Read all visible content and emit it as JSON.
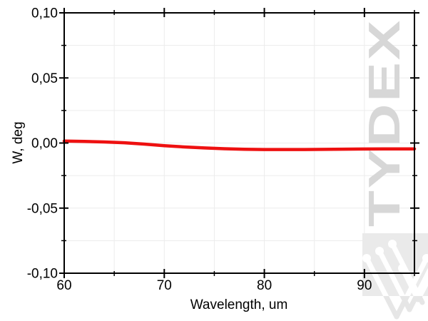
{
  "figure": {
    "background": "#ffffff",
    "watermark": {
      "text": "TYDEX",
      "text_color": "#d7d7d7",
      "panel_color": "#eaeaea",
      "logo_color_on_panel": "#ffffff",
      "logo_color_below_panel": "#e6e6e6"
    }
  },
  "chart_data": {
    "type": "line",
    "title": "",
    "xlabel": "Wavelength, um",
    "ylabel": "W, deg",
    "xlim": [
      60,
      95
    ],
    "ylim": [
      -0.1,
      0.1
    ],
    "x_major_ticks": [
      60,
      70,
      80,
      90
    ],
    "x_tick_labels": [
      "60",
      "70",
      "80",
      "90"
    ],
    "x_minor_ticks": [
      65,
      75,
      85,
      95
    ],
    "y_major_ticks": [
      0.1,
      0.05,
      0.0,
      -0.05,
      -0.1
    ],
    "y_tick_labels": [
      "0,10",
      "0,05",
      "0,00",
      "-0,05",
      "-0,10"
    ],
    "y_minor_ticks": [
      0.075,
      0.025,
      -0.025,
      -0.075
    ],
    "grid": true,
    "grid_color": "#ececec",
    "axis_color": "#000000",
    "legend": null,
    "series": [
      {
        "name": "W",
        "color": "#ee1010",
        "width": 4.5,
        "x": [
          60,
          62,
          64,
          66,
          68,
          70,
          72,
          74,
          76,
          78,
          80,
          82,
          84,
          86,
          88,
          90,
          92,
          95
        ],
        "y": [
          0.0015,
          0.0012,
          0.0008,
          0.0002,
          -0.0008,
          -0.002,
          -0.003,
          -0.0038,
          -0.0044,
          -0.0048,
          -0.005,
          -0.005,
          -0.005,
          -0.0049,
          -0.0047,
          -0.0046,
          -0.0045,
          -0.0045
        ]
      }
    ]
  }
}
